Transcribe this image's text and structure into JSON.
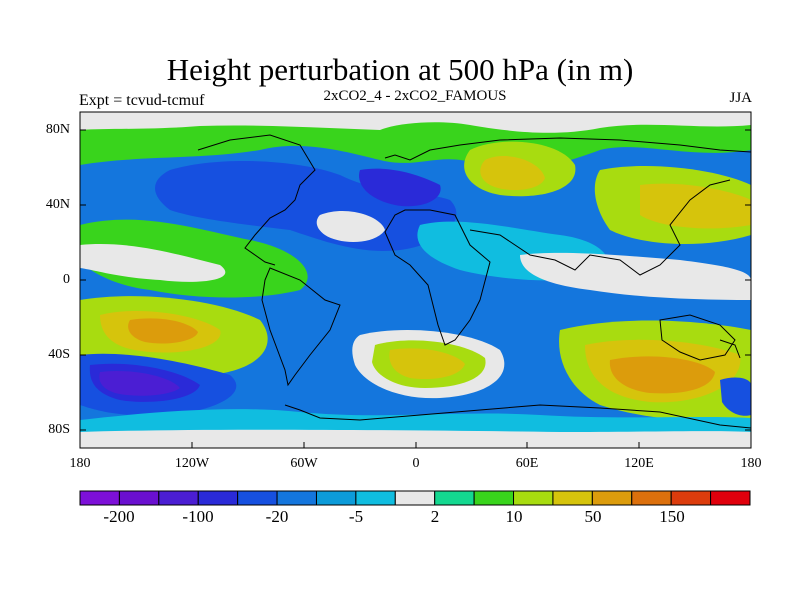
{
  "title": "Height perturbation at 500 hPa (in m)",
  "left_label": "Expt = tcvud-tcmuf",
  "center_label": "2xCO2_4 - 2xCO2_FAMOUS",
  "right_label": "JJA",
  "y_axis": {
    "labels": [
      "80N",
      "40N",
      "0",
      "40S",
      "80S"
    ]
  },
  "x_axis": {
    "labels": [
      "180",
      "120W",
      "60W",
      "0",
      "60E",
      "120E",
      "180"
    ]
  },
  "colorbar": {
    "colors": [
      "#7d10d8",
      "#6a10d0",
      "#4b1ed3",
      "#2a2ad8",
      "#1650e0",
      "#1476dd",
      "#0c9bd9",
      "#10bde0",
      "#e8e8e8",
      "#14d890",
      "#39d41c",
      "#a8dc10",
      "#d6c40c",
      "#dc9c0c",
      "#dc700c",
      "#dc3c0c",
      "#e0000c"
    ],
    "tick_labels": [
      "-200",
      "-100",
      "-20",
      "-5",
      "2",
      "10",
      "50",
      "150"
    ]
  }
}
